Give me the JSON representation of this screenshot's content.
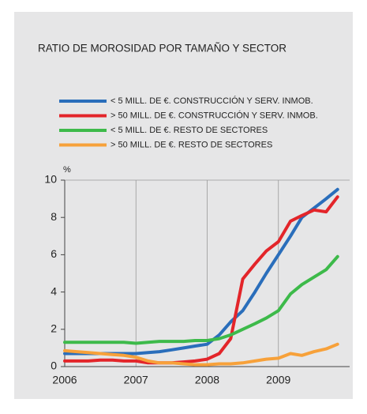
{
  "chart_data": {
    "type": "line",
    "title": "RATIO DE MOROSIDAD POR TAMAÑO Y SECTOR",
    "y_label": "%",
    "x": [
      2006,
      2006.17,
      2006.33,
      2006.5,
      2006.67,
      2006.83,
      2007,
      2007.17,
      2007.33,
      2007.5,
      2007.67,
      2007.83,
      2008,
      2008.17,
      2008.33,
      2008.5,
      2008.67,
      2008.83,
      2009,
      2009.17,
      2009.33,
      2009.5,
      2009.67,
      2009.83
    ],
    "series": [
      {
        "name": "< 5 MILL. DE €.  CONSTRUCCIÓN Y SERV. INMOB.",
        "color": "#2a6ebb",
        "values": [
          0.7,
          0.7,
          0.7,
          0.7,
          0.7,
          0.7,
          0.7,
          0.75,
          0.8,
          0.9,
          1.0,
          1.1,
          1.2,
          1.7,
          2.4,
          3.0,
          4.0,
          5.0,
          6.0,
          7.0,
          8.0,
          8.5,
          9.0,
          9.5
        ]
      },
      {
        "name": "> 50 MILL. DE €. CONSTRUCCIÓN Y SERV. INMOB.",
        "color": "#e3252a",
        "values": [
          0.3,
          0.3,
          0.3,
          0.35,
          0.35,
          0.3,
          0.3,
          0.2,
          0.2,
          0.2,
          0.25,
          0.3,
          0.4,
          0.7,
          1.5,
          4.7,
          5.5,
          6.2,
          6.7,
          7.8,
          8.1,
          8.4,
          8.3,
          9.1
        ]
      },
      {
        "name": "< 5 MILL. DE €. RESTO DE SECTORES",
        "color": "#3dba4a",
        "values": [
          1.3,
          1.3,
          1.3,
          1.3,
          1.3,
          1.3,
          1.25,
          1.3,
          1.35,
          1.35,
          1.35,
          1.4,
          1.4,
          1.5,
          1.7,
          2.0,
          2.3,
          2.6,
          3.0,
          3.9,
          4.4,
          4.8,
          5.2,
          5.9
        ]
      },
      {
        "name": "> 50 MILL. DE €. RESTO DE SECTORES",
        "color": "#f7a13a",
        "values": [
          0.85,
          0.8,
          0.75,
          0.7,
          0.65,
          0.6,
          0.5,
          0.3,
          0.2,
          0.2,
          0.15,
          0.1,
          0.1,
          0.15,
          0.15,
          0.2,
          0.3,
          0.4,
          0.45,
          0.7,
          0.6,
          0.8,
          0.95,
          1.2
        ]
      }
    ],
    "xlim": [
      2006,
      2010
    ],
    "xticks": [
      2006,
      2007,
      2008,
      2009
    ],
    "ylim": [
      0,
      10
    ],
    "yticks": [
      0,
      2,
      4,
      6,
      8,
      10
    ],
    "grid": true
  }
}
